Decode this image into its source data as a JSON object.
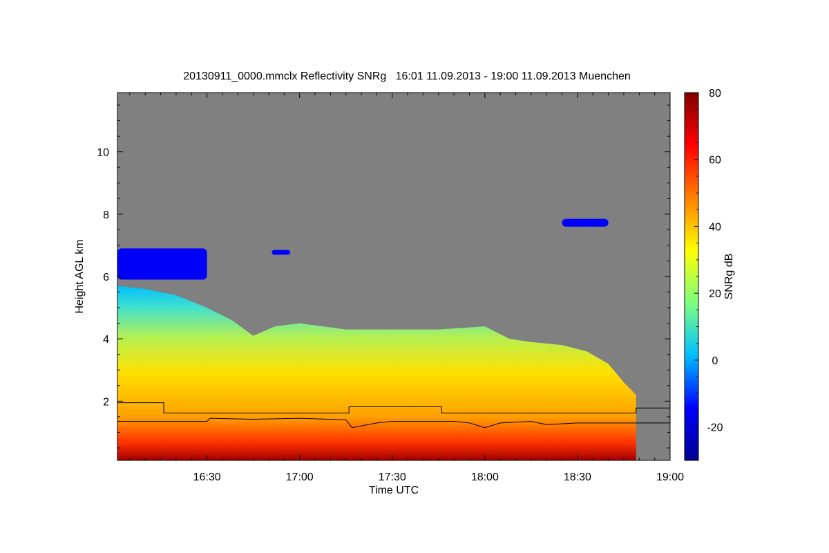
{
  "chart_data": {
    "type": "heatmap",
    "title": "20130911_0000.mmclx Reflectivity SNRg   16:01 11.09.2013 - 19:00 11.09.2013 Muenchen",
    "xlabel": "Time UTC",
    "ylabel": "Height AGL km",
    "colorbar_label": "SNRg dB",
    "x_range": [
      "16:01",
      "19:00"
    ],
    "x_ticks": [
      "16:30",
      "17:00",
      "17:30",
      "18:00",
      "18:30",
      "19:00"
    ],
    "y_range": [
      0.1,
      11.9
    ],
    "y_ticks": [
      2,
      4,
      6,
      8,
      10
    ],
    "colorbar_range": [
      -30,
      80
    ],
    "colorbar_ticks": [
      -20,
      0,
      20,
      40,
      60,
      80
    ],
    "colorscale": [
      "#00008f",
      "#0000ff",
      "#00bfff",
      "#7fff7f",
      "#ffff00",
      "#ff7f00",
      "#ff0000",
      "#7f0000"
    ],
    "no_data_color": "#808080",
    "cloud_top_km": [
      {
        "time": "16:01",
        "height": 5.7
      },
      {
        "time": "16:10",
        "height": 5.6
      },
      {
        "time": "16:20",
        "height": 5.4
      },
      {
        "time": "16:30",
        "height": 5.0
      },
      {
        "time": "16:38",
        "height": 4.6
      },
      {
        "time": "16:45",
        "height": 4.1
      },
      {
        "time": "16:52",
        "height": 4.4
      },
      {
        "time": "17:00",
        "height": 4.5
      },
      {
        "time": "17:15",
        "height": 4.3
      },
      {
        "time": "17:30",
        "height": 4.3
      },
      {
        "time": "17:45",
        "height": 4.3
      },
      {
        "time": "18:00",
        "height": 4.4
      },
      {
        "time": "18:08",
        "height": 4.0
      },
      {
        "time": "18:15",
        "height": 3.9
      },
      {
        "time": "18:25",
        "height": 3.8
      },
      {
        "time": "18:33",
        "height": 3.6
      },
      {
        "time": "18:40",
        "height": 3.2
      },
      {
        "time": "18:45",
        "height": 2.6
      },
      {
        "time": "18:49",
        "height": 2.2
      }
    ],
    "upper_echo_layers": [
      {
        "t_start": "16:01",
        "t_end": "16:30",
        "h_bottom": 5.9,
        "h_top": 6.9,
        "level_db": -15
      },
      {
        "t_start": "16:51",
        "t_end": "16:57",
        "h_bottom": 6.7,
        "h_top": 6.85,
        "level_db": -15
      },
      {
        "t_start": "18:25",
        "t_end": "18:40",
        "h_bottom": 7.6,
        "h_top": 7.85,
        "level_db": -15
      }
    ],
    "lines": [
      {
        "points": [
          {
            "time": "16:01",
            "height": 1.95
          },
          {
            "time": "16:16",
            "height": 1.95
          },
          {
            "time": "16:16",
            "height": 1.62
          },
          {
            "time": "17:16",
            "height": 1.62
          },
          {
            "time": "17:16",
            "height": 1.82
          },
          {
            "time": "17:46",
            "height": 1.82
          },
          {
            "time": "17:46",
            "height": 1.62
          },
          {
            "time": "18:49",
            "height": 1.62
          },
          {
            "time": "18:49",
            "height": 1.78
          },
          {
            "time": "19:00",
            "height": 1.78
          }
        ]
      },
      {
        "points": [
          {
            "time": "16:01",
            "height": 1.35
          },
          {
            "time": "16:30",
            "height": 1.35
          },
          {
            "time": "16:31",
            "height": 1.45
          },
          {
            "time": "16:45",
            "height": 1.42
          },
          {
            "time": "17:00",
            "height": 1.45
          },
          {
            "time": "17:15",
            "height": 1.4
          },
          {
            "time": "17:17",
            "height": 1.15
          },
          {
            "time": "17:25",
            "height": 1.3
          },
          {
            "time": "17:30",
            "height": 1.35
          },
          {
            "time": "17:50",
            "height": 1.35
          },
          {
            "time": "17:55",
            "height": 1.3
          },
          {
            "time": "18:00",
            "height": 1.15
          },
          {
            "time": "18:05",
            "height": 1.3
          },
          {
            "time": "18:15",
            "height": 1.35
          },
          {
            "time": "18:20",
            "height": 1.25
          },
          {
            "time": "18:30",
            "height": 1.3
          },
          {
            "time": "19:00",
            "height": 1.3
          }
        ]
      }
    ]
  }
}
